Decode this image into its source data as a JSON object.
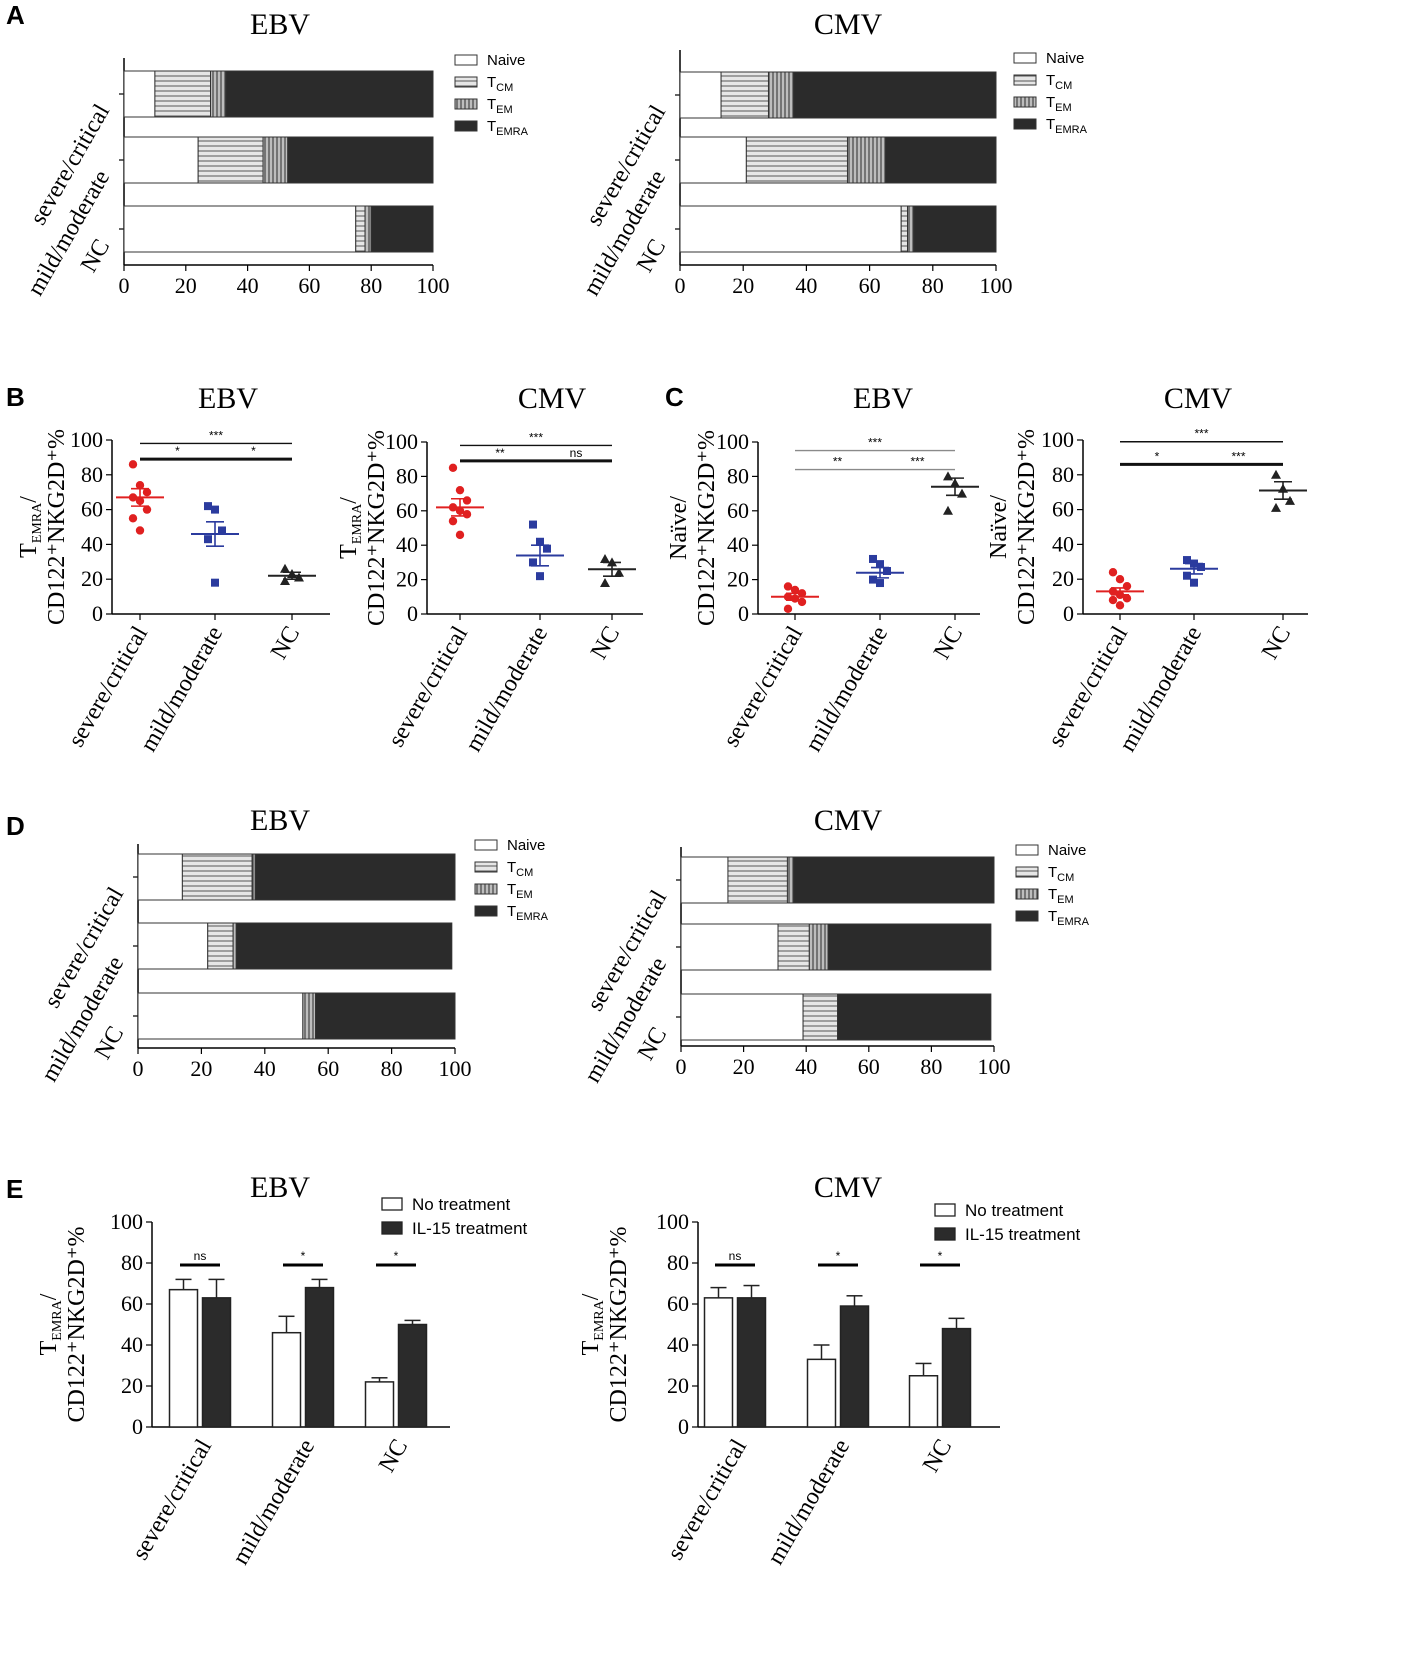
{
  "colors": {
    "naive": "#ffffff",
    "tcm": "#d9d9d9",
    "tem": "#a8a8a8",
    "temra": "#2b2b2b",
    "severe": "#e02020",
    "mild": "#2b3b9e",
    "nc": "#222222",
    "sig_line": "#111111",
    "sig_line_gray": "#8a8a8a"
  },
  "chart_data": [
    {
      "id": "A_EBV",
      "panel": "A",
      "type": "bar",
      "orientation": "horizontal-stacked",
      "title": "EBV",
      "categories": [
        "severe/critical",
        "mild/moderate",
        "NC"
      ],
      "xlim": [
        0,
        100
      ],
      "xticks": [
        "0",
        "20",
        "40",
        "60",
        "80",
        "100"
      ],
      "legend": [
        "Naive",
        "T_CM",
        "T_EM",
        "T_EMRA"
      ],
      "series": [
        {
          "name": "Naive",
          "values": [
            10,
            24,
            75
          ]
        },
        {
          "name": "T_CM",
          "values": [
            18,
            21,
            3
          ]
        },
        {
          "name": "T_EM",
          "values": [
            5,
            8,
            2
          ]
        },
        {
          "name": "T_EMRA",
          "values": [
            67,
            47,
            20
          ]
        }
      ]
    },
    {
      "id": "A_CMV",
      "panel": "",
      "type": "bar",
      "orientation": "horizontal-stacked",
      "title": "CMV",
      "categories": [
        "severe/critical",
        "mild/moderate",
        "NC"
      ],
      "xlim": [
        0,
        100
      ],
      "xticks": [
        "0",
        "20",
        "40",
        "60",
        "80",
        "100"
      ],
      "legend": [
        "Naive",
        "T_CM",
        "T_EM",
        "T_EMRA"
      ],
      "series": [
        {
          "name": "Naive",
          "values": [
            13,
            21,
            70
          ]
        },
        {
          "name": "T_CM",
          "values": [
            15,
            32,
            2
          ]
        },
        {
          "name": "T_EM",
          "values": [
            8,
            12,
            2
          ]
        },
        {
          "name": "T_EMRA",
          "values": [
            64,
            35,
            26
          ]
        }
      ]
    },
    {
      "id": "B_EBV",
      "panel": "B",
      "type": "scatter",
      "title": "EBV",
      "ylabel_main": "T",
      "ylabel_sub": "EMRA",
      "ylabel_line2": "CD122⁺NKG2D⁺%",
      "ylim": [
        0,
        100
      ],
      "yticks": [
        "0",
        "20",
        "40",
        "60",
        "80",
        "100"
      ],
      "categories": [
        "severe/critical",
        "mild/moderate",
        "NC"
      ],
      "points": [
        [
          86,
          74,
          70,
          67,
          65,
          60,
          55,
          48
        ],
        [
          62,
          60,
          48,
          43,
          18
        ],
        [
          26,
          23,
          21,
          19
        ]
      ],
      "means": [
        67,
        46,
        22
      ],
      "sem": [
        5,
        7,
        2
      ],
      "sig": [
        {
          "from": 0,
          "to": 1,
          "y": 89,
          "label": "*",
          "gray": false
        },
        {
          "from": 1,
          "to": 2,
          "y": 89,
          "label": "*",
          "gray": false
        },
        {
          "from": 0,
          "to": 2,
          "y": 98,
          "label": "***",
          "gray": false
        }
      ]
    },
    {
      "id": "B_CMV",
      "panel": "",
      "type": "scatter",
      "title": "CMV",
      "ylabel_main": "T",
      "ylabel_sub": "EMRA",
      "ylabel_line2": "CD122⁺NKG2D⁺%",
      "ylim": [
        0,
        100
      ],
      "yticks": [
        "0",
        "20",
        "40",
        "60",
        "80",
        "100"
      ],
      "categories": [
        "severe/critical",
        "mild/moderate",
        "NC"
      ],
      "points": [
        [
          85,
          72,
          66,
          62,
          60,
          58,
          54,
          46
        ],
        [
          52,
          42,
          38,
          30,
          22
        ],
        [
          32,
          30,
          24,
          18
        ]
      ],
      "means": [
        62,
        34,
        26
      ],
      "sem": [
        5,
        6,
        4
      ],
      "sig": [
        {
          "from": 0,
          "to": 1,
          "y": 89,
          "label": "**",
          "gray": false
        },
        {
          "from": 1,
          "to": 2,
          "y": 89,
          "label": "ns",
          "gray": false
        },
        {
          "from": 0,
          "to": 2,
          "y": 98,
          "label": "***",
          "gray": false
        }
      ]
    },
    {
      "id": "C_EBV",
      "panel": "C",
      "type": "scatter",
      "title": "EBV",
      "ylabel_main": "Naïve/",
      "ylabel_line2": "CD122⁺NKG2D⁺%",
      "ylim": [
        0,
        100
      ],
      "yticks": [
        "0",
        "20",
        "40",
        "60",
        "80",
        "100"
      ],
      "categories": [
        "severe/critical",
        "mild/moderate",
        "NC"
      ],
      "points": [
        [
          16,
          14,
          12,
          10,
          9,
          7,
          3
        ],
        [
          32,
          29,
          25,
          20,
          18
        ],
        [
          80,
          76,
          70,
          60
        ]
      ],
      "means": [
        10,
        24,
        74
      ],
      "sem": [
        2,
        3,
        5
      ],
      "sig": [
        {
          "from": 0,
          "to": 1,
          "y": 84,
          "label": "**",
          "gray": true
        },
        {
          "from": 1,
          "to": 2,
          "y": 84,
          "label": "***",
          "gray": true
        },
        {
          "from": 0,
          "to": 2,
          "y": 95,
          "label": "***",
          "gray": true
        }
      ]
    },
    {
      "id": "C_CMV",
      "panel": "",
      "type": "scatter",
      "title": "CMV",
      "ylabel_main": "Naïve/",
      "ylabel_line2": "CD122⁺NKG2D⁺%",
      "ylim": [
        0,
        100
      ],
      "yticks": [
        "0",
        "20",
        "40",
        "60",
        "80",
        "100"
      ],
      "categories": [
        "severe/critical",
        "mild/moderate",
        "NC"
      ],
      "points": [
        [
          24,
          20,
          16,
          13,
          11,
          9,
          8,
          5
        ],
        [
          31,
          29,
          27,
          22,
          18
        ],
        [
          80,
          72,
          65,
          61
        ]
      ],
      "means": [
        13,
        26,
        71
      ],
      "sem": [
        2,
        3,
        5
      ],
      "sig": [
        {
          "from": 0,
          "to": 1,
          "y": 86,
          "label": "*",
          "gray": false
        },
        {
          "from": 1,
          "to": 2,
          "y": 86,
          "label": "***",
          "gray": false
        },
        {
          "from": 0,
          "to": 2,
          "y": 99,
          "label": "***",
          "gray": false
        }
      ]
    },
    {
      "id": "D_EBV",
      "panel": "D",
      "type": "bar",
      "orientation": "horizontal-stacked",
      "title": "EBV",
      "categories": [
        "severe/critical",
        "mild/moderate",
        "NC"
      ],
      "xlim": [
        0,
        100
      ],
      "xticks": [
        "0",
        "20",
        "40",
        "60",
        "80",
        "100"
      ],
      "legend": [
        "Naive",
        "T_CM",
        "T_EM",
        "T_EMRA"
      ],
      "series": [
        {
          "name": "Naive",
          "values": [
            14,
            22,
            52
          ]
        },
        {
          "name": "T_CM",
          "values": [
            22,
            8,
            0
          ]
        },
        {
          "name": "T_EM",
          "values": [
            1,
            1,
            4
          ]
        },
        {
          "name": "T_EMRA",
          "values": [
            63,
            68,
            44
          ]
        }
      ]
    },
    {
      "id": "D_CMV",
      "panel": "",
      "type": "bar",
      "orientation": "horizontal-stacked",
      "title": "CMV",
      "categories": [
        "severe/critical",
        "mild/moderate",
        "NC"
      ],
      "xlim": [
        0,
        100
      ],
      "xticks": [
        "0",
        "20",
        "40",
        "60",
        "80",
        "100"
      ],
      "legend": [
        "Naive",
        "T_CM",
        "T_EM",
        "T_EMRA"
      ],
      "series": [
        {
          "name": "Naive",
          "values": [
            15,
            31,
            39
          ]
        },
        {
          "name": "T_CM",
          "values": [
            19,
            10,
            11
          ]
        },
        {
          "name": "T_EM",
          "values": [
            2,
            6,
            0
          ]
        },
        {
          "name": "T_EMRA",
          "values": [
            64,
            52,
            49
          ]
        }
      ]
    },
    {
      "id": "E_EBV",
      "panel": "E",
      "type": "bar",
      "title": "EBV",
      "ylabel_main": "T",
      "ylabel_sub": "EMRA",
      "ylabel_line2": "CD122⁺NKG2D⁺%",
      "ylim": [
        0,
        100
      ],
      "yticks": [
        "0",
        "20",
        "40",
        "60",
        "80",
        "100"
      ],
      "categories": [
        "severe/critical",
        "mild/moderate",
        "NC"
      ],
      "series": [
        {
          "name": "No treatment",
          "values": [
            67,
            46,
            22
          ],
          "err": [
            5,
            8,
            2
          ]
        },
        {
          "name": "IL-15 treatment",
          "values": [
            63,
            68,
            50
          ],
          "err": [
            9,
            4,
            2
          ]
        }
      ],
      "sig": [
        "ns",
        "*",
        "*"
      ]
    },
    {
      "id": "E_CMV",
      "panel": "",
      "type": "bar",
      "title": "CMV",
      "ylabel_main": "T",
      "ylabel_sub": "EMRA",
      "ylabel_line2": "CD122⁺NKG2D⁺%",
      "ylim": [
        0,
        100
      ],
      "yticks": [
        "0",
        "20",
        "40",
        "60",
        "80",
        "100"
      ],
      "categories": [
        "severe/critical",
        "mild/moderate",
        "NC"
      ],
      "series": [
        {
          "name": "No treatment",
          "values": [
            63,
            33,
            25
          ],
          "err": [
            5,
            7,
            6
          ]
        },
        {
          "name": "IL-15 treatment",
          "values": [
            63,
            59,
            48
          ],
          "err": [
            6,
            5,
            5
          ]
        }
      ],
      "sig": [
        "ns",
        "*",
        "*"
      ]
    }
  ]
}
